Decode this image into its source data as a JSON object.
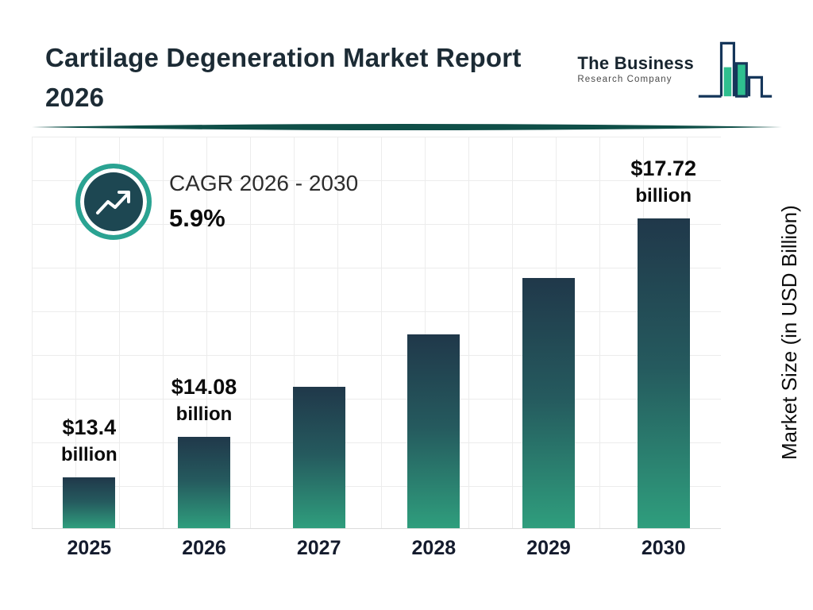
{
  "header": {
    "title": "Cartilage Degeneration Market Report 2026",
    "logo": {
      "name": "The Business",
      "subname": "Research Company"
    }
  },
  "cagr": {
    "label": "CAGR 2026 - 2030",
    "value": "5.9%"
  },
  "chart_data": {
    "type": "bar",
    "title": "Cartilage Degeneration Market Report 2026",
    "categories": [
      "2025",
      "2026",
      "2027",
      "2028",
      "2029",
      "2030"
    ],
    "values": [
      13.4,
      14.08,
      14.91,
      15.79,
      16.72,
      17.72
    ],
    "value_labels": [
      "$13.4 billion",
      "$14.08 billion",
      "",
      "",
      "",
      "$17.72 billion"
    ],
    "ylabel": "Market Size (in USD Billion)",
    "ylim": [
      12.55,
      17.72
    ],
    "grid": true,
    "legend": "none",
    "colors": {
      "bar_top": "#20384a",
      "bar_bottom": "#2f9e7d",
      "accent": "#2aa392",
      "ring_dark": "#1d4752"
    }
  }
}
